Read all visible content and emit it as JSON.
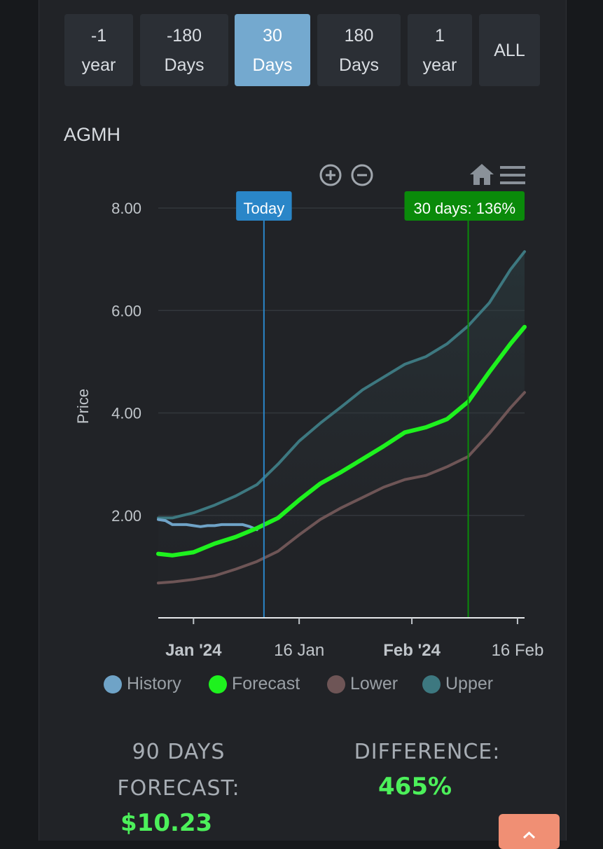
{
  "range_buttons": [
    {
      "line1": "-1",
      "line2": "year",
      "active": false
    },
    {
      "line1": "-180",
      "line2": "Days",
      "active": false
    },
    {
      "line1": "30",
      "line2": "Days",
      "active": true
    },
    {
      "line1": "180",
      "line2": "Days",
      "active": false
    },
    {
      "line1": "1",
      "line2": "year",
      "active": false
    },
    {
      "line1": "ALL",
      "line2": "",
      "active": false
    }
  ],
  "ticker": "AGMH",
  "toolbar": {
    "zoom_in": "zoom-in-icon",
    "zoom_out": "zoom-out-icon",
    "home": "home-icon",
    "menu": "menu-icon"
  },
  "chart_data": {
    "type": "line",
    "ylabel": "Price",
    "xlabel": "",
    "ylim": [
      0,
      8.0
    ],
    "xlim": [
      "2023-12-27",
      "2024-02-17"
    ],
    "y_ticks": [
      "2.00",
      "4.00",
      "6.00",
      "8.00"
    ],
    "x_ticks": [
      {
        "date": "2024-01-01",
        "label": "Jan '24",
        "bold": true
      },
      {
        "date": "2024-01-16",
        "label": "16 Jan",
        "bold": false
      },
      {
        "date": "2024-02-01",
        "label": "Feb '24",
        "bold": true
      },
      {
        "date": "2024-02-16",
        "label": "16 Feb",
        "bold": false
      }
    ],
    "annotations": [
      {
        "label": "Today",
        "date": "2024-01-11",
        "color": "#2a86c8"
      },
      {
        "label": "30 days: 136%",
        "date": "2024-02-09",
        "color": "#0a8a0a"
      }
    ],
    "series": [
      {
        "name": "History",
        "color": "#6fa3c7",
        "x": [
          "2023-12-27",
          "2023-12-28",
          "2023-12-29",
          "2023-12-30",
          "2023-12-31",
          "2024-01-01",
          "2024-01-02",
          "2024-01-03",
          "2024-01-04",
          "2024-01-05",
          "2024-01-06",
          "2024-01-07",
          "2024-01-08",
          "2024-01-09",
          "2024-01-10"
        ],
        "y": [
          1.92,
          1.9,
          1.82,
          1.82,
          1.82,
          1.8,
          1.78,
          1.8,
          1.8,
          1.82,
          1.82,
          1.82,
          1.82,
          1.78,
          1.72
        ]
      },
      {
        "name": "Forecast",
        "color": "#1ef21e",
        "x": [
          "2023-12-27",
          "2023-12-29",
          "2024-01-01",
          "2024-01-04",
          "2024-01-07",
          "2024-01-10",
          "2024-01-13",
          "2024-01-16",
          "2024-01-19",
          "2024-01-22",
          "2024-01-25",
          "2024-01-28",
          "2024-01-31",
          "2024-02-03",
          "2024-02-06",
          "2024-02-09",
          "2024-02-12",
          "2024-02-15",
          "2024-02-17"
        ],
        "y": [
          1.25,
          1.22,
          1.28,
          1.45,
          1.58,
          1.75,
          1.95,
          2.3,
          2.62,
          2.85,
          3.1,
          3.35,
          3.62,
          3.72,
          3.88,
          4.22,
          4.8,
          5.35,
          5.68
        ]
      },
      {
        "name": "Lower",
        "color": "#6e5556",
        "x": [
          "2023-12-27",
          "2023-12-29",
          "2024-01-01",
          "2024-01-04",
          "2024-01-07",
          "2024-01-10",
          "2024-01-13",
          "2024-01-16",
          "2024-01-19",
          "2024-01-22",
          "2024-01-25",
          "2024-01-28",
          "2024-01-31",
          "2024-02-03",
          "2024-02-06",
          "2024-02-09",
          "2024-02-12",
          "2024-02-15",
          "2024-02-17"
        ],
        "y": [
          0.68,
          0.7,
          0.75,
          0.82,
          0.95,
          1.1,
          1.3,
          1.62,
          1.92,
          2.15,
          2.35,
          2.55,
          2.7,
          2.78,
          2.95,
          3.15,
          3.6,
          4.1,
          4.4
        ]
      },
      {
        "name": "Upper",
        "color": "#3d7880",
        "x": [
          "2023-12-27",
          "2023-12-29",
          "2024-01-01",
          "2024-01-04",
          "2024-01-07",
          "2024-01-10",
          "2024-01-13",
          "2024-01-16",
          "2024-01-19",
          "2024-01-22",
          "2024-01-25",
          "2024-01-28",
          "2024-01-31",
          "2024-02-03",
          "2024-02-06",
          "2024-02-09",
          "2024-02-12",
          "2024-02-15",
          "2024-02-17"
        ],
        "y": [
          1.95,
          1.95,
          2.05,
          2.2,
          2.38,
          2.6,
          3.0,
          3.45,
          3.8,
          4.12,
          4.45,
          4.7,
          4.95,
          5.1,
          5.35,
          5.7,
          6.15,
          6.8,
          7.15
        ]
      }
    ]
  },
  "legend": [
    {
      "label": "History",
      "color": "#6fa3c7"
    },
    {
      "label": "Forecast",
      "color": "#1ef21e"
    },
    {
      "label": "Lower",
      "color": "#6e5556"
    },
    {
      "label": "Upper",
      "color": "#3d7880"
    }
  ],
  "stats": {
    "forecast_label_1": "90 DAYS",
    "forecast_label_2": "FORECAST:",
    "forecast_value": "$10.23",
    "difference_label": "DIFFERENCE:",
    "difference_value": "465%"
  },
  "scroll_top_icon": "chevron-up-icon"
}
